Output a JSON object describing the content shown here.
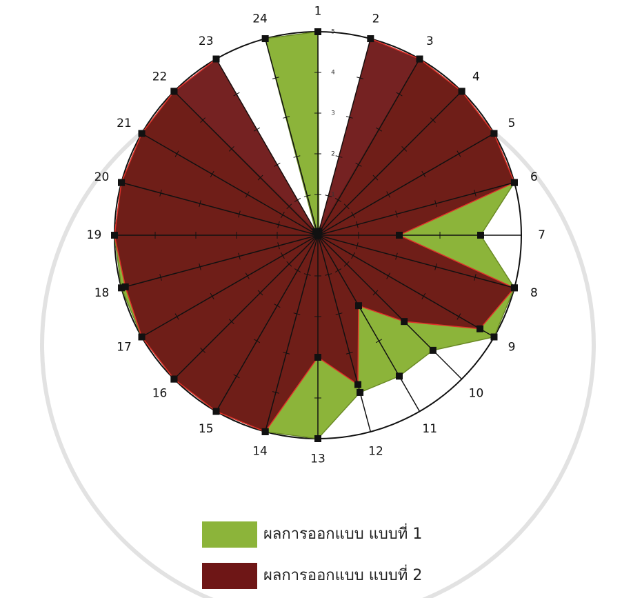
{
  "chart_data": {
    "type": "radar",
    "categories": [
      "1",
      "2",
      "3",
      "4",
      "5",
      "6",
      "7",
      "8",
      "9",
      "10",
      "11",
      "12",
      "13",
      "14",
      "15",
      "16",
      "17",
      "18",
      "19",
      "20",
      "21",
      "22",
      "23",
      "24"
    ],
    "rlim": [
      0,
      5
    ],
    "rticks": [
      1,
      2,
      3,
      4,
      5
    ],
    "series": [
      {
        "name": "ผลการออกแบบ แบบที่ 1",
        "color": "#8cb43a",
        "values": [
          5,
          0.1,
          5,
          5,
          5,
          5,
          4,
          5,
          5,
          4,
          4,
          4,
          5,
          5,
          5,
          5,
          5,
          5,
          5,
          5,
          5,
          5,
          0.1,
          5
        ]
      },
      {
        "name": "ผลการออกแบบ แบบที่ 2",
        "color": "#6e1616",
        "values": [
          0,
          5,
          5,
          5,
          5,
          5,
          2,
          5,
          4.6,
          3,
          2,
          3.8,
          3,
          5,
          5,
          5,
          5,
          4.9,
          5,
          5,
          5,
          5,
          5,
          0
        ]
      }
    ]
  }
}
